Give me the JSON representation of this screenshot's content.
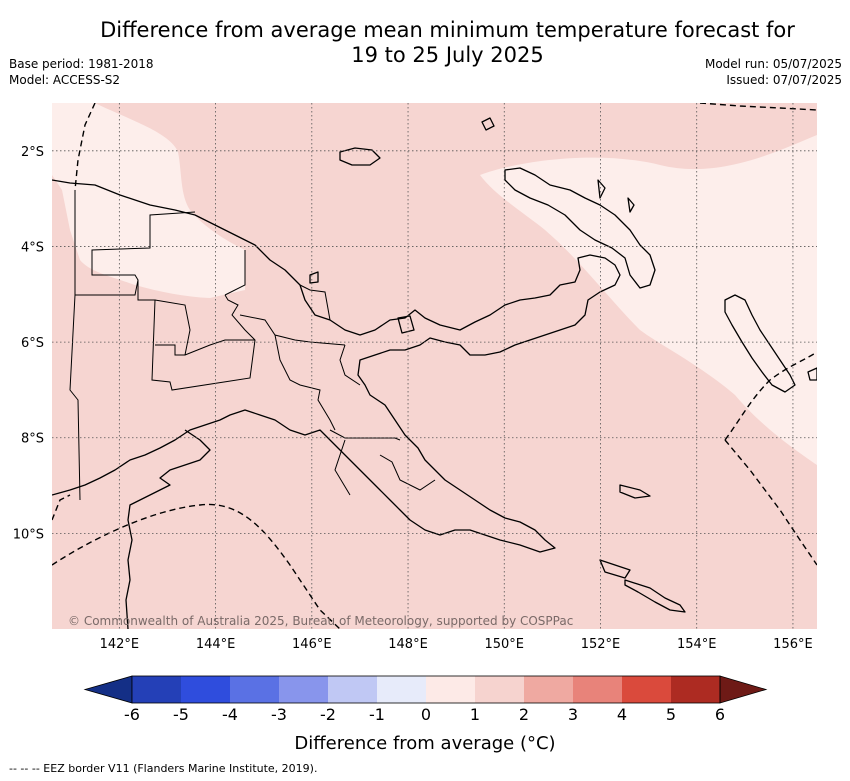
{
  "title_line1": "Difference from average mean minimum temperature forecast for",
  "title_line2": "19 to 25 July 2025",
  "base_period": "Base period: 1981-2018",
  "model": "Model: ACCESS-S2",
  "model_run": "Model run: 05/07/2025",
  "issued": "Issued: 07/07/2025",
  "credit": "© Commonwealth of Australia 2025, Bureau of Meteorology, supported by COSPPac",
  "footer": "-- -- -- EEZ border V11 (Flanders Marine Institute, 2019).",
  "map": {
    "lon_range": [
      140.6,
      156.5
    ],
    "lat_range": [
      -12.0,
      -1.0
    ],
    "lon_ticks": [
      {
        "value": 142,
        "label": "142°E"
      },
      {
        "value": 144,
        "label": "144°E"
      },
      {
        "value": 146,
        "label": "146°E"
      },
      {
        "value": 148,
        "label": "148°E"
      },
      {
        "value": 150,
        "label": "150°E"
      },
      {
        "value": 152,
        "label": "152°E"
      },
      {
        "value": 154,
        "label": "154°E"
      },
      {
        "value": 156,
        "label": "156°E"
      }
    ],
    "lat_ticks": [
      {
        "value": -2,
        "label": "2°S"
      },
      {
        "value": -4,
        "label": "4°S"
      },
      {
        "value": -6,
        "label": "6°S"
      },
      {
        "value": -8,
        "label": "8°S"
      },
      {
        "value": -10,
        "label": "10°S"
      }
    ],
    "gridlines": true,
    "gridline_style": "dotted",
    "anomaly_background_bin": "1 to 2",
    "anomaly_light_bin": "0 to 1"
  },
  "colorbar": {
    "label": "Difference from average (°C)",
    "ticks": [
      "-6",
      "-5",
      "-4",
      "-3",
      "-2",
      "-1",
      "0",
      "1",
      "2",
      "3",
      "4",
      "5",
      "6"
    ],
    "colors": [
      "#142f86",
      "#2440b7",
      "#2f4ddd",
      "#5a71e4",
      "#8895ec",
      "#c0c8f4",
      "#e7ebfa",
      "#fdeae7",
      "#f6d3cf",
      "#efa9a1",
      "#e8837a",
      "#da4a3c",
      "#ad2b22",
      "#6e1a16"
    ]
  },
  "colors": {
    "anomaly_1_2": "#f6d5d1",
    "anomaly_0_1": "#fdeeeb",
    "coast": "#000000",
    "grid": "#555555"
  }
}
